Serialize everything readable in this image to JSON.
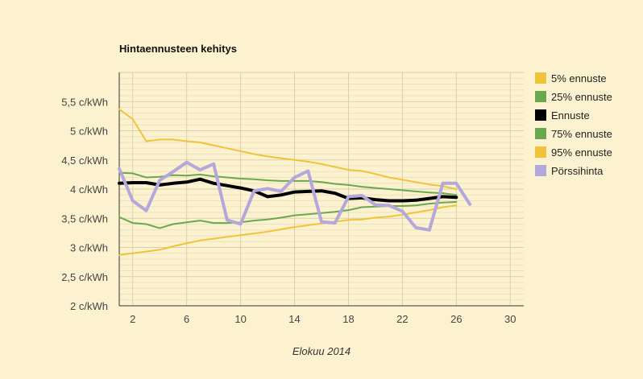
{
  "chart_data": {
    "type": "line",
    "title": "Hintaennusteen kehitys",
    "xlabel": "Elokuu 2014",
    "ylabel": "",
    "xlim": [
      1,
      31
    ],
    "ylim": [
      2,
      6
    ],
    "x_ticks": [
      2,
      6,
      10,
      14,
      18,
      22,
      26,
      30
    ],
    "y_ticks": [
      {
        "value": 2,
        "label": "2 c/kWh"
      },
      {
        "value": 2.5,
        "label": "2,5 c/kWh"
      },
      {
        "value": 3,
        "label": "3 c/kWh"
      },
      {
        "value": 3.5,
        "label": "3,5 c/kWh"
      },
      {
        "value": 4,
        "label": "4 c/kWh"
      },
      {
        "value": 4.5,
        "label": "4,5 c/kWh"
      },
      {
        "value": 5,
        "label": "5 c/kWh"
      },
      {
        "value": 5.5,
        "label": "5,5 c/kWh"
      }
    ],
    "grid": true,
    "legend_position": "right",
    "series": [
      {
        "name": "5% ennuste",
        "color": "#f0c33c",
        "width": 2,
        "x": [
          1,
          2,
          3,
          4,
          5,
          6,
          7,
          8,
          9,
          10,
          11,
          12,
          13,
          14,
          15,
          16,
          17,
          18,
          19,
          20,
          21,
          22,
          23,
          24,
          25,
          26
        ],
        "values": [
          5.37,
          5.2,
          4.82,
          4.85,
          4.85,
          4.82,
          4.8,
          4.75,
          4.7,
          4.65,
          4.6,
          4.56,
          4.53,
          4.5,
          4.47,
          4.43,
          4.38,
          4.33,
          4.31,
          4.26,
          4.2,
          4.16,
          4.12,
          4.08,
          4.05,
          4.0
        ]
      },
      {
        "name": "25% ennuste",
        "color": "#6aa84f",
        "width": 2,
        "x": [
          1,
          2,
          3,
          4,
          5,
          6,
          7,
          8,
          9,
          10,
          11,
          12,
          13,
          14,
          15,
          16,
          17,
          18,
          19,
          20,
          21,
          22,
          23,
          24,
          25,
          26
        ],
        "values": [
          4.28,
          4.27,
          4.2,
          4.21,
          4.24,
          4.23,
          4.25,
          4.22,
          4.2,
          4.18,
          4.17,
          4.15,
          4.14,
          4.14,
          4.14,
          4.12,
          4.09,
          4.07,
          4.04,
          4.02,
          4.0,
          3.98,
          3.96,
          3.94,
          3.93,
          3.9
        ]
      },
      {
        "name": "Ennuste",
        "color": "#000000",
        "width": 4,
        "x": [
          1,
          2,
          3,
          4,
          5,
          6,
          7,
          8,
          9,
          10,
          11,
          12,
          13,
          14,
          15,
          16,
          17,
          18,
          19,
          20,
          21,
          22,
          23,
          24,
          25,
          26
        ],
        "values": [
          4.1,
          4.11,
          4.11,
          4.07,
          4.1,
          4.12,
          4.17,
          4.1,
          4.06,
          4.02,
          3.97,
          3.87,
          3.9,
          3.95,
          3.96,
          3.97,
          3.93,
          3.84,
          3.85,
          3.82,
          3.8,
          3.8,
          3.81,
          3.84,
          3.87,
          3.86
        ]
      },
      {
        "name": "75% ennuste",
        "color": "#6aa84f",
        "width": 2,
        "x": [
          1,
          2,
          3,
          4,
          5,
          6,
          7,
          8,
          9,
          10,
          11,
          12,
          13,
          14,
          15,
          16,
          17,
          18,
          19,
          20,
          21,
          22,
          23,
          24,
          25,
          26
        ],
        "values": [
          3.52,
          3.42,
          3.4,
          3.33,
          3.4,
          3.43,
          3.46,
          3.42,
          3.42,
          3.43,
          3.46,
          3.48,
          3.51,
          3.55,
          3.57,
          3.59,
          3.61,
          3.64,
          3.69,
          3.7,
          3.71,
          3.71,
          3.72,
          3.75,
          3.77,
          3.78
        ]
      },
      {
        "name": "95% ennuste",
        "color": "#f0c33c",
        "width": 2,
        "x": [
          1,
          2,
          3,
          4,
          5,
          6,
          7,
          8,
          9,
          10,
          11,
          12,
          13,
          14,
          15,
          16,
          17,
          18,
          19,
          20,
          21,
          22,
          23,
          24,
          25,
          26
        ],
        "values": [
          2.87,
          2.9,
          2.93,
          2.96,
          3.02,
          3.07,
          3.12,
          3.15,
          3.18,
          3.21,
          3.24,
          3.27,
          3.31,
          3.35,
          3.38,
          3.41,
          3.44,
          3.47,
          3.48,
          3.51,
          3.53,
          3.56,
          3.6,
          3.64,
          3.69,
          3.72
        ]
      },
      {
        "name": "Pörssihinta",
        "color": "#b3a7dc",
        "width": 4,
        "x": [
          1,
          2,
          3,
          4,
          5,
          6,
          7,
          8,
          9,
          10,
          11,
          12,
          13,
          14,
          15,
          16,
          17,
          18,
          19,
          20,
          21,
          22,
          23,
          24,
          25,
          26,
          27
        ],
        "values": [
          4.35,
          3.8,
          3.63,
          4.15,
          4.3,
          4.46,
          4.33,
          4.43,
          3.47,
          3.4,
          3.97,
          4.01,
          3.96,
          4.2,
          4.31,
          3.44,
          3.42,
          3.87,
          3.89,
          3.73,
          3.72,
          3.62,
          3.34,
          3.3,
          4.1,
          4.1,
          3.74
        ]
      }
    ]
  }
}
